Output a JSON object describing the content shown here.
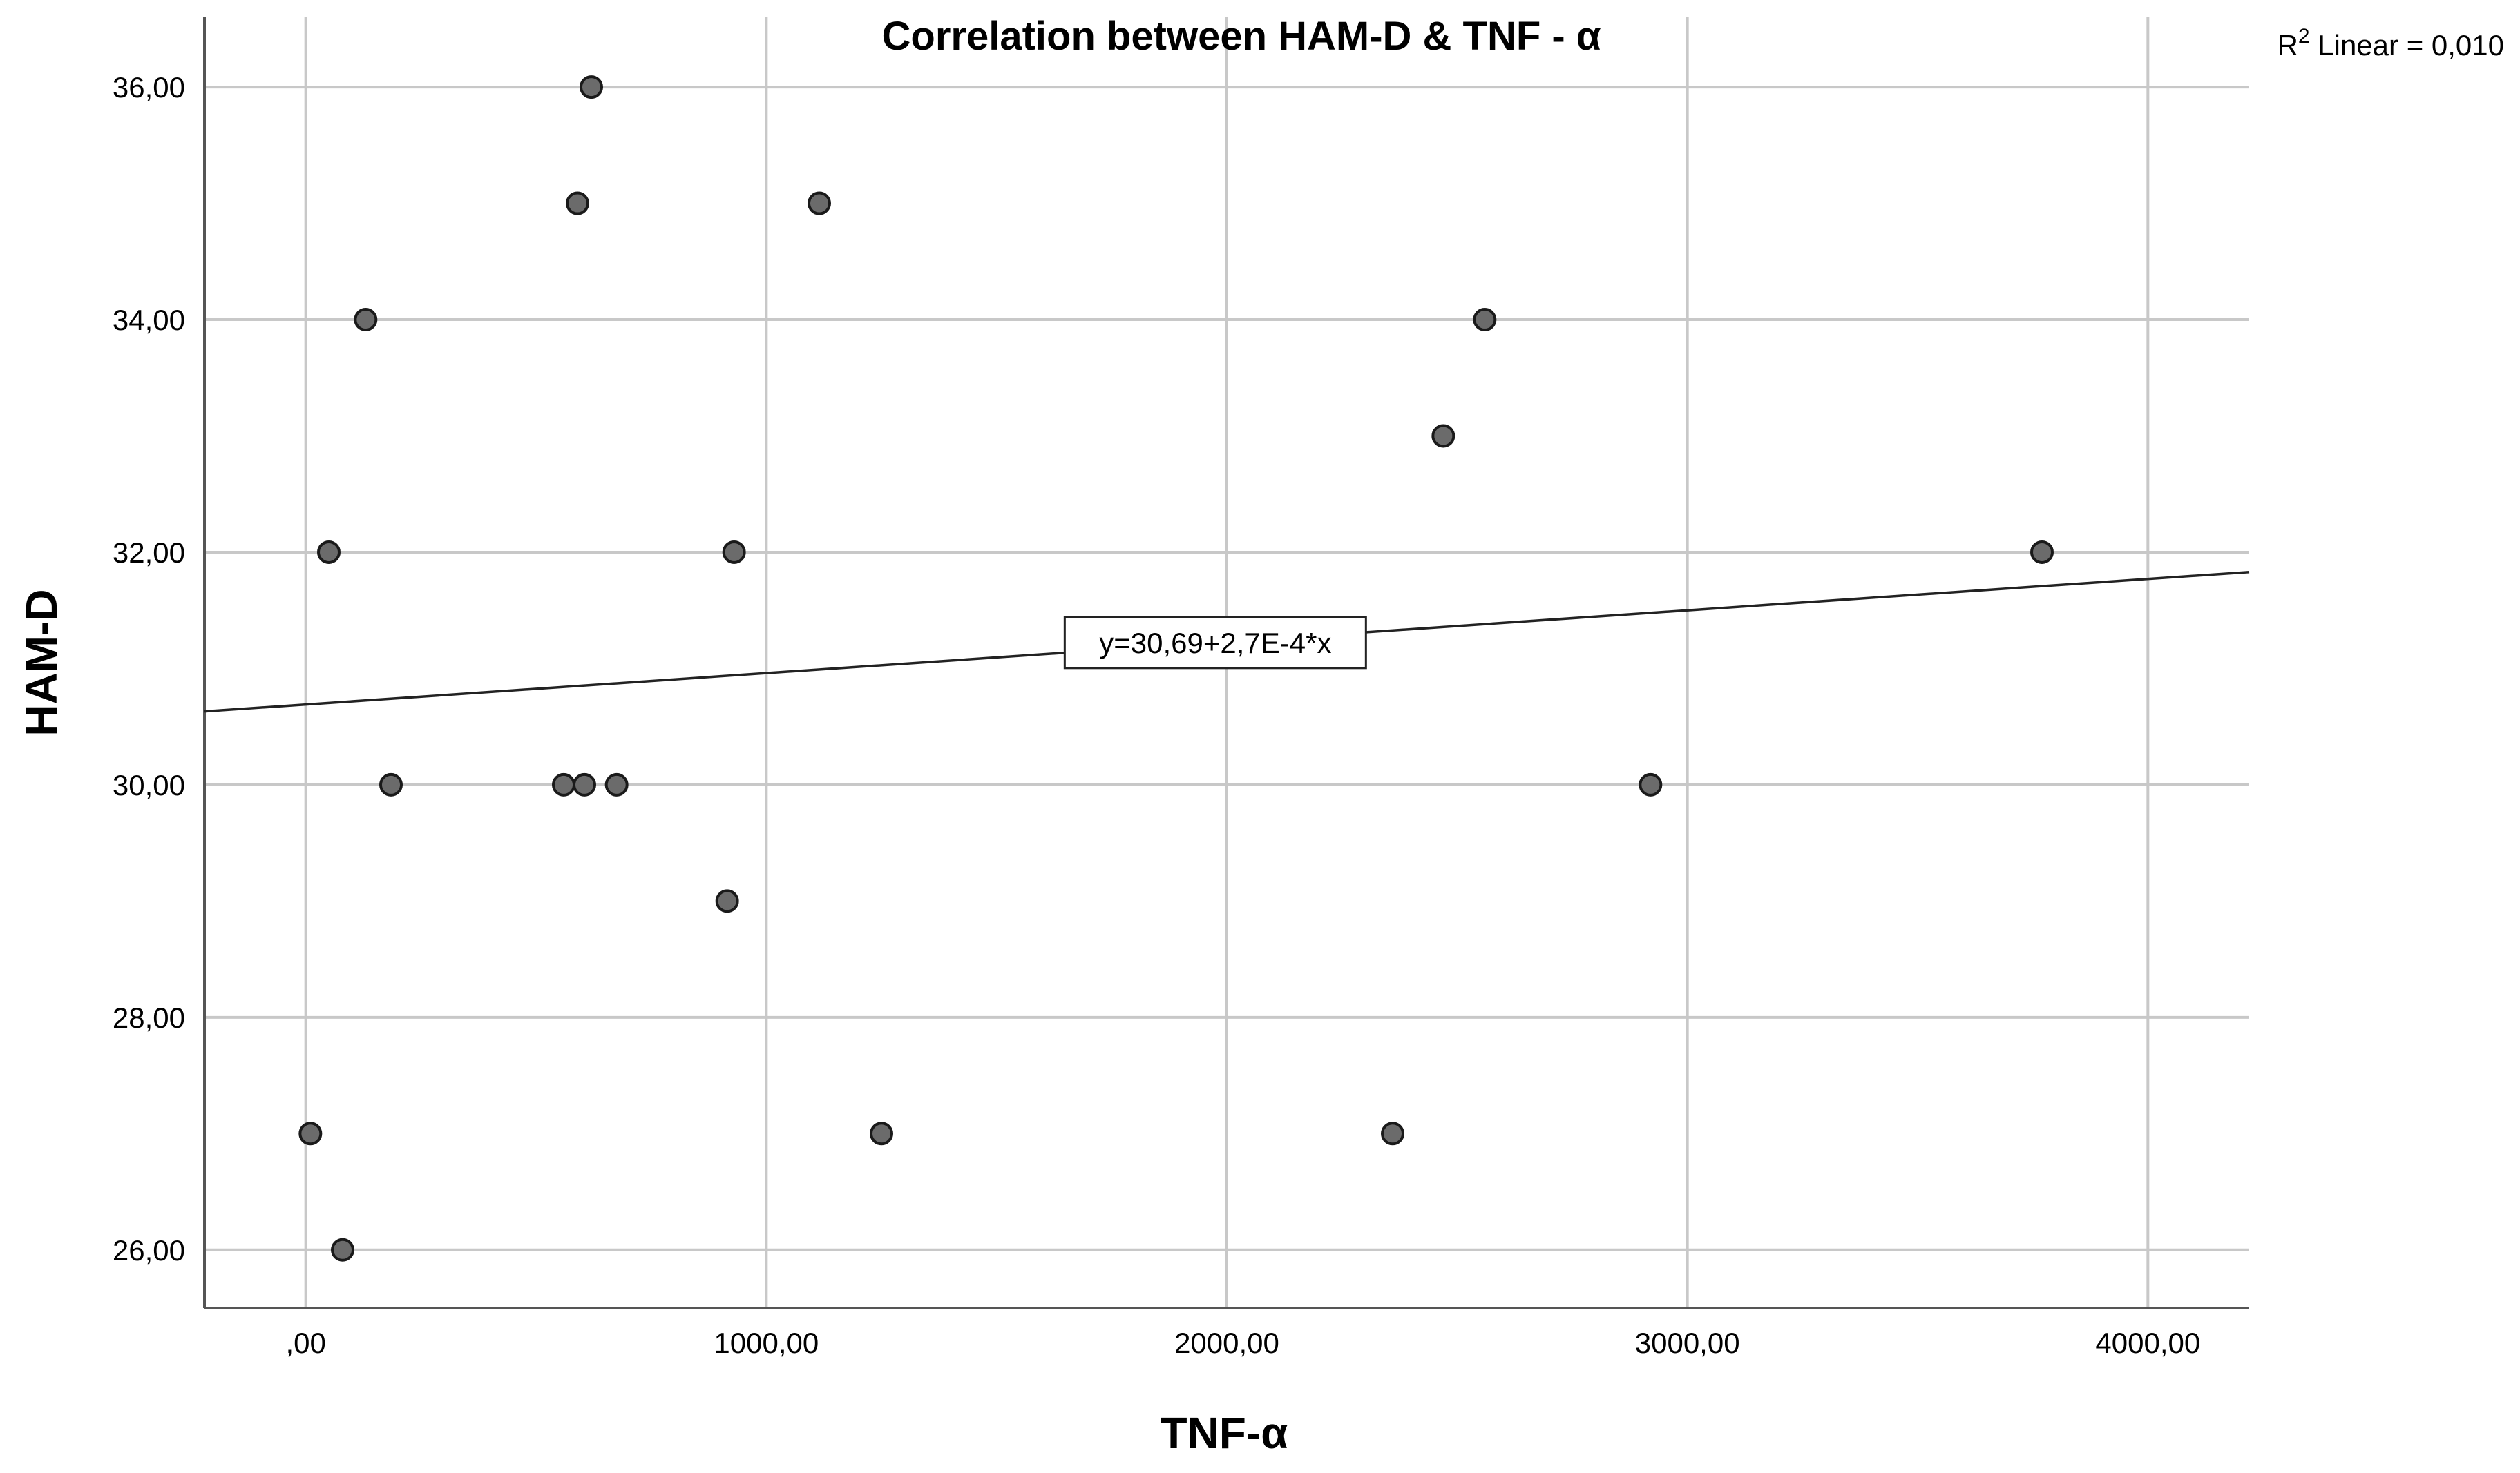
{
  "chart_data": {
    "type": "scatter",
    "title": "Correlation between HAM-D & TNF - α",
    "xlabel": "TNF-α",
    "ylabel": "HAM-D",
    "xlim": [
      -220,
      4220
    ],
    "ylim": [
      25.5,
      36.6
    ],
    "x_ticks": [
      0,
      1000,
      2000,
      3000,
      4000
    ],
    "x_tick_labels": [
      ",00",
      "1000,00",
      "2000,00",
      "3000,00",
      "4000,00"
    ],
    "y_ticks": [
      26,
      28,
      30,
      32,
      34,
      36
    ],
    "y_tick_labels": [
      "26,00",
      "28,00",
      "30,00",
      "32,00",
      "34,00",
      "36,00"
    ],
    "grid": true,
    "points": [
      {
        "x": 620,
        "y": 36
      },
      {
        "x": 590,
        "y": 35
      },
      {
        "x": 1115,
        "y": 35
      },
      {
        "x": 130,
        "y": 34
      },
      {
        "x": 2560,
        "y": 34
      },
      {
        "x": 2470,
        "y": 33
      },
      {
        "x": 50,
        "y": 32
      },
      {
        "x": 930,
        "y": 32
      },
      {
        "x": 3770,
        "y": 32
      },
      {
        "x": 185,
        "y": 30
      },
      {
        "x": 560,
        "y": 30
      },
      {
        "x": 605,
        "y": 30
      },
      {
        "x": 675,
        "y": 30
      },
      {
        "x": 2920,
        "y": 30
      },
      {
        "x": 915,
        "y": 29
      },
      {
        "x": 10,
        "y": 27
      },
      {
        "x": 1250,
        "y": 27
      },
      {
        "x": 2360,
        "y": 27
      },
      {
        "x": 80,
        "y": 26
      }
    ],
    "fit_line": {
      "intercept": 30.69,
      "slope": 0.00027,
      "equation_label": "y=30,69+2,7E-4*x",
      "label_x": 1975
    },
    "r2_label": {
      "prefix": "R",
      "sup": "2",
      "rest": " Linear = 0,010"
    },
    "colors": {
      "marker_fill": "#6b6b6b",
      "marker_stroke": "#1a1a1a",
      "grid": "#c8c8c8",
      "axis": "#555555",
      "fit_line": "#222222",
      "text": "#000000"
    }
  }
}
